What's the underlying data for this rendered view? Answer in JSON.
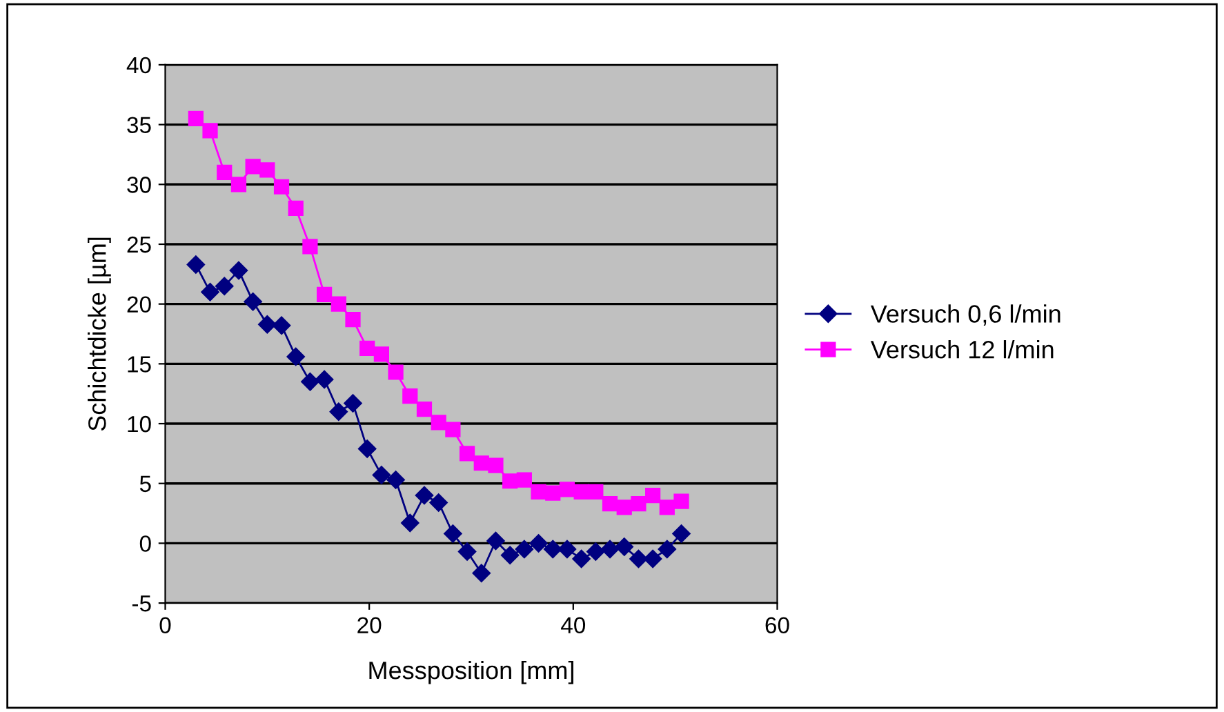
{
  "chart_data": {
    "type": "line",
    "xlabel": "Messposition [mm]",
    "ylabel": "Schichtdicke [µm]",
    "xlim": [
      0,
      60
    ],
    "xticks": [
      0,
      20,
      40,
      60
    ],
    "ylim": [
      -5,
      40
    ],
    "yticks": [
      -5,
      0,
      5,
      10,
      15,
      20,
      25,
      30,
      35,
      40
    ],
    "grid": "y",
    "legend": "right",
    "line_style": "solid",
    "x": [
      3.0,
      4.4,
      5.8,
      7.2,
      8.6,
      10.0,
      11.4,
      12.8,
      14.2,
      15.6,
      17.0,
      18.4,
      19.8,
      21.2,
      22.6,
      24.0,
      25.4,
      26.8,
      28.2,
      29.6,
      31.0,
      32.4,
      33.8,
      35.2,
      36.6,
      38.0,
      39.4,
      40.8,
      42.2,
      43.6,
      45.0,
      46.4,
      47.8,
      49.2,
      50.6
    ],
    "series": [
      {
        "name": "Versuch 0,6 l/min",
        "color": "#000080",
        "marker": "diamond",
        "values": [
          23.3,
          21,
          21.5,
          22.8,
          20.2,
          18.3,
          18.2,
          15.6,
          13.5,
          13.7,
          11,
          11.7,
          7.9,
          5.7,
          5.3,
          1.7,
          4,
          3.4,
          0.8,
          -0.7,
          -2.5,
          0.2,
          -1,
          -0.5,
          0,
          -0.5,
          -0.5,
          -1.3,
          -0.7,
          -0.5,
          -0.3,
          -1.3,
          -1.3,
          -0.5,
          0.8
        ]
      },
      {
        "name": "Versuch 12 l/min",
        "color": "#ff00ff",
        "marker": "square",
        "values": [
          35.5,
          34.5,
          31,
          30,
          31.5,
          31.2,
          29.8,
          28,
          24.8,
          20.8,
          20,
          18.7,
          16.3,
          15.8,
          14.3,
          12.3,
          11.2,
          10.1,
          9.5,
          7.5,
          6.7,
          6.5,
          5.2,
          5.3,
          4.3,
          4.2,
          4.5,
          4.3,
          4.3,
          3.3,
          3.0,
          3.3,
          4,
          3.0,
          3.5
        ]
      }
    ]
  }
}
